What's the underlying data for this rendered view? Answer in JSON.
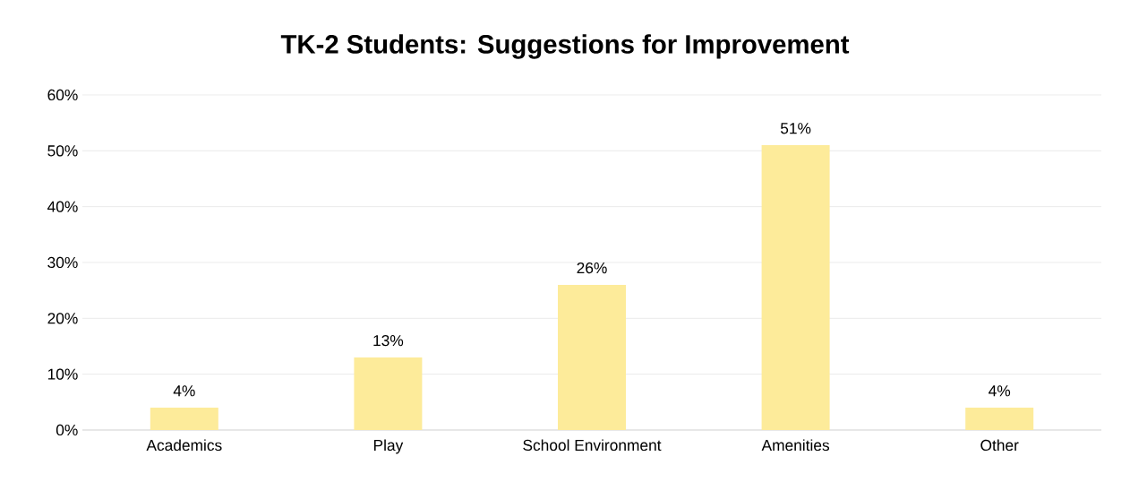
{
  "chart_data": {
    "type": "bar",
    "title": "TK-2 Students: Suggestions for Improvement",
    "categories": [
      "Academics",
      "Play",
      "School Environment",
      "Amenities",
      "Other"
    ],
    "values": [
      4,
      13,
      26,
      51,
      4
    ],
    "value_labels": [
      "4%",
      "13%",
      "26%",
      "51%",
      "4%"
    ],
    "color": "#fdeb9a",
    "ylim": [
      0,
      60
    ],
    "yticks": [
      {
        "value": 0,
        "label": "0%"
      },
      {
        "value": 10,
        "label": "10%"
      },
      {
        "value": 20,
        "label": "20%"
      },
      {
        "value": 30,
        "label": "30%"
      },
      {
        "value": 40,
        "label": "40%"
      },
      {
        "value": 50,
        "label": "50%"
      },
      {
        "value": 60,
        "label": "60%"
      }
    ],
    "grid": "y"
  }
}
